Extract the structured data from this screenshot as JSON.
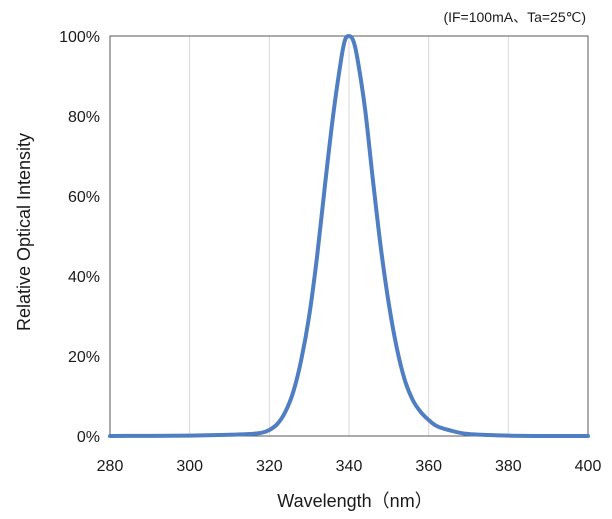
{
  "chart_data": {
    "type": "line",
    "annotation": "(IF=100mA、Ta=25℃)",
    "xlabel": "Wavelength（nm）",
    "ylabel": "Relative Optical Intensity",
    "xlim": [
      280,
      400
    ],
    "ylim": [
      0,
      100
    ],
    "x_ticks": [
      "280",
      "300",
      "320",
      "340",
      "360",
      "380",
      "400"
    ],
    "y_ticks": [
      "0%",
      "20%",
      "40%",
      "60%",
      "80%",
      "100%"
    ],
    "grid": "vertical",
    "series": [
      {
        "color": "#4f7ec2",
        "x": [
          280,
          300,
          310,
          315,
          318,
          320,
          322,
          324,
          326,
          328,
          330,
          332,
          334,
          336,
          338,
          339,
          340,
          341,
          342,
          344,
          346,
          348,
          350,
          352,
          354,
          356,
          358,
          360,
          362,
          365,
          370,
          380,
          390,
          400
        ],
        "y": [
          0,
          0.1,
          0.3,
          0.5,
          0.8,
          1.5,
          3,
          6,
          11,
          19,
          30,
          45,
          63,
          80,
          94,
          99,
          100,
          99,
          95,
          82,
          64,
          47,
          33,
          22,
          14,
          9,
          6,
          4,
          2.5,
          1.5,
          0.5,
          0.1,
          0,
          0
        ]
      }
    ]
  }
}
